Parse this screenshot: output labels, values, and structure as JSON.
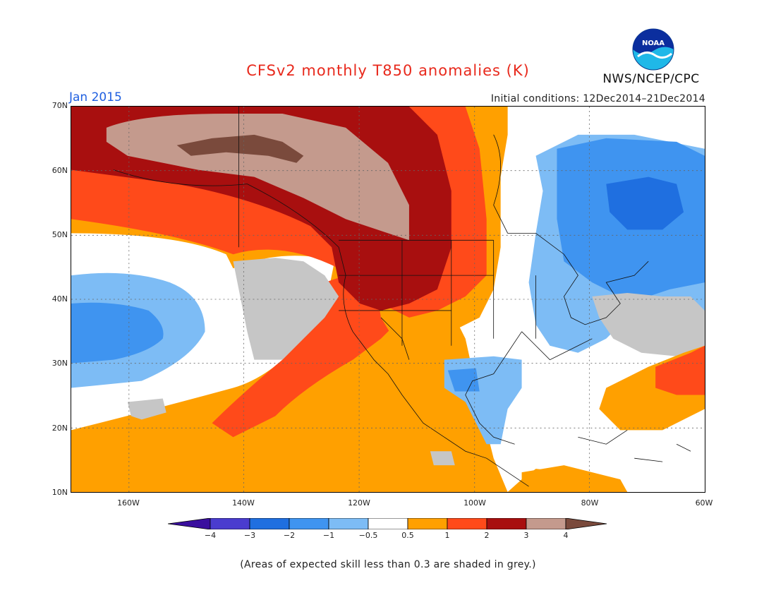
{
  "header": {
    "title": "CFSv2 monthly T850 anomalies (K)",
    "month": "Jan 2015",
    "initial_conditions": "Initial conditions: 12Dec2014–21Dec2014",
    "agency": "NWS/NCEP/CPC",
    "logo_text": "NOAA"
  },
  "map": {
    "projection": "lat-lon",
    "lon_range": [
      -170,
      -60
    ],
    "lat_range": [
      10,
      70
    ],
    "lat_labels": [
      "70N",
      "60N",
      "50N",
      "40N",
      "30N",
      "20N",
      "10N"
    ],
    "lon_labels": [
      "160W",
      "140W",
      "120W",
      "100W",
      "80W",
      "60W"
    ],
    "gridlines": "dotted"
  },
  "colorbar": {
    "labels": [
      "−4",
      "−3",
      "−2",
      "−1",
      "−0.5",
      "0.5",
      "1",
      "2",
      "3",
      "4"
    ],
    "colors": [
      "#3a0f9e",
      "#4a3ccf",
      "#1f6fe0",
      "#3f94f0",
      "#7dbcf5",
      "#ffffff",
      "#ffa000",
      "#ff4a1a",
      "#a80f0f",
      "#c49a8d",
      "#7a4a3c"
    ]
  },
  "footnote": "(Areas of expected skill less than 0.3 are shaded in grey.)"
}
